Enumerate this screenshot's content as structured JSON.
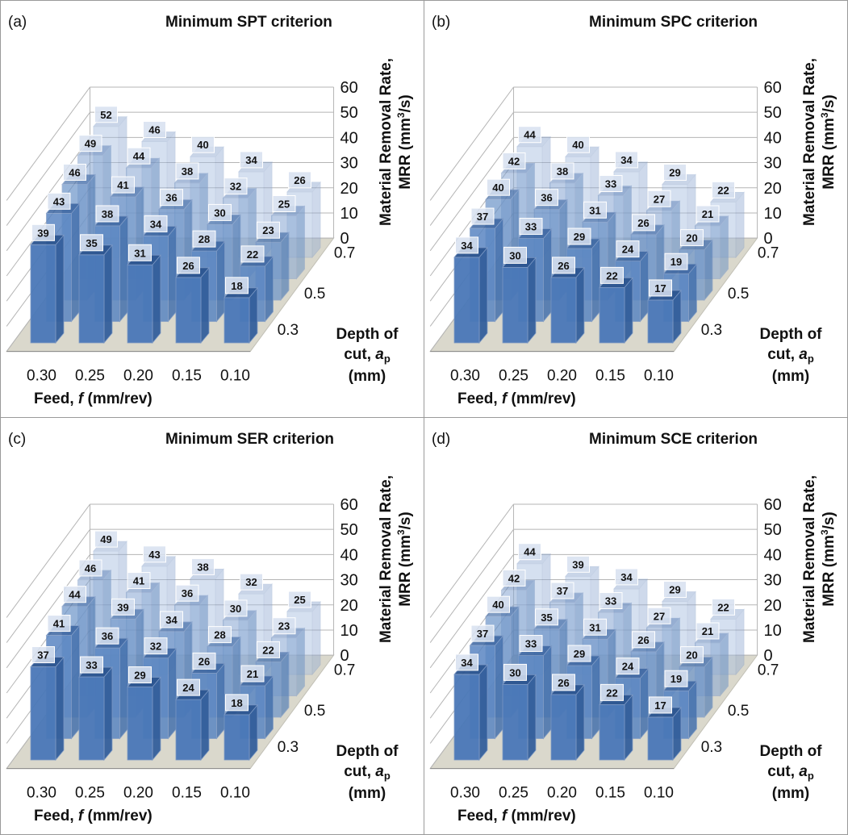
{
  "figure": {
    "shared_axes": {
      "feed_ticks": [
        "0.30",
        "0.25",
        "0.20",
        "0.15",
        "0.10"
      ],
      "depth_ticks": [
        "0.3",
        "0.5",
        "0.7"
      ],
      "z_ticks": [
        "0",
        "10",
        "20",
        "30",
        "40",
        "50",
        "60"
      ],
      "xlabel_prefix": "Feed, ",
      "xlabel_symbol": "f",
      "xlabel_units": " (mm/rev)",
      "depth_label_line1": "Depth of",
      "depth_label_line2_prefix": "cut, ",
      "depth_label_symbol": "a",
      "depth_label_subscript": "p",
      "depth_label_line3": "(mm)",
      "zlabel_line1": "Material Removal Rate,",
      "zlabel_line2_prefix": "MRR (mm",
      "zlabel_superscript": "3",
      "zlabel_line2_suffix": "/s)",
      "bar_color_front": "#4a78b8",
      "bar_color_top": "#2f5a97",
      "bar_color_side": "#36639f"
    }
  },
  "chart_data": [
    {
      "type": "bar",
      "panel_label": "(a)",
      "title": "Minimum SPT criterion",
      "categories": [
        "0.30",
        "0.25",
        "0.20",
        "0.15",
        "0.10"
      ],
      "depth_categories": [
        "0.3",
        "0.5",
        "0.7"
      ],
      "xlabel": "Feed, f (mm/rev)",
      "ylabel": "Depth of cut, ap (mm)",
      "zlabel": "Material Removal Rate, MRR (mm3/s)",
      "zlim": [
        0,
        60
      ],
      "grid": true,
      "series": [
        {
          "depth": "0.3",
          "values": [
            39,
            35,
            31,
            26,
            18
          ]
        },
        {
          "depth": "0.5",
          "values": [
            43,
            38,
            34,
            28,
            22
          ]
        },
        {
          "depth": "0.5",
          "values": [
            46,
            41,
            36,
            30,
            23
          ]
        },
        {
          "depth": "0.7",
          "values": [
            49,
            44,
            38,
            32,
            25
          ]
        },
        {
          "depth": "0.7",
          "values": [
            52,
            46,
            40,
            34,
            26
          ]
        }
      ]
    },
    {
      "type": "bar",
      "panel_label": "(b)",
      "title": "Minimum SPC criterion",
      "categories": [
        "0.30",
        "0.25",
        "0.20",
        "0.15",
        "0.10"
      ],
      "depth_categories": [
        "0.3",
        "0.5",
        "0.7"
      ],
      "xlabel": "Feed, f (mm/rev)",
      "ylabel": "Depth of cut, ap (mm)",
      "zlabel": "Material Removal Rate, MRR (mm3/s)",
      "zlim": [
        0,
        60
      ],
      "grid": true,
      "series": [
        {
          "depth": "0.3",
          "values": [
            34,
            30,
            26,
            22,
            17
          ]
        },
        {
          "depth": "0.5",
          "values": [
            37,
            33,
            29,
            24,
            19
          ]
        },
        {
          "depth": "0.5",
          "values": [
            40,
            36,
            31,
            26,
            20
          ]
        },
        {
          "depth": "0.7",
          "values": [
            42,
            38,
            33,
            27,
            21
          ]
        },
        {
          "depth": "0.7",
          "values": [
            44,
            40,
            34,
            29,
            22
          ]
        }
      ]
    },
    {
      "type": "bar",
      "panel_label": "(c)",
      "title": "Minimum SER criterion",
      "categories": [
        "0.30",
        "0.25",
        "0.20",
        "0.15",
        "0.10"
      ],
      "depth_categories": [
        "0.3",
        "0.5",
        "0.7"
      ],
      "xlabel": "Feed, f (mm/rev)",
      "ylabel": "Depth of cut, ap (mm)",
      "zlabel": "Material Removal Rate, MRR (mm3/s)",
      "zlim": [
        0,
        60
      ],
      "grid": true,
      "series": [
        {
          "depth": "0.3",
          "values": [
            37,
            33,
            29,
            24,
            18
          ]
        },
        {
          "depth": "0.5",
          "values": [
            41,
            36,
            32,
            26,
            21
          ]
        },
        {
          "depth": "0.5",
          "values": [
            44,
            39,
            34,
            28,
            22
          ]
        },
        {
          "depth": "0.7",
          "values": [
            46,
            41,
            36,
            30,
            23
          ]
        },
        {
          "depth": "0.7",
          "values": [
            49,
            43,
            38,
            32,
            25
          ]
        }
      ]
    },
    {
      "type": "bar",
      "panel_label": "(d)",
      "title": "Minimum SCE criterion",
      "categories": [
        "0.30",
        "0.25",
        "0.20",
        "0.15",
        "0.10"
      ],
      "depth_categories": [
        "0.3",
        "0.5",
        "0.7"
      ],
      "xlabel": "Feed, f (mm/rev)",
      "ylabel": "Depth of cut, ap (mm)",
      "zlabel": "Material Removal Rate, MRR (mm3/s)",
      "zlim": [
        0,
        60
      ],
      "grid": true,
      "series": [
        {
          "depth": "0.3",
          "values": [
            34,
            30,
            26,
            22,
            17
          ]
        },
        {
          "depth": "0.5",
          "values": [
            37,
            33,
            29,
            24,
            19
          ]
        },
        {
          "depth": "0.5",
          "values": [
            40,
            35,
            31,
            26,
            20
          ]
        },
        {
          "depth": "0.7",
          "values": [
            42,
            37,
            33,
            27,
            21
          ]
        },
        {
          "depth": "0.7",
          "values": [
            44,
            39,
            34,
            29,
            22
          ]
        }
      ]
    }
  ]
}
